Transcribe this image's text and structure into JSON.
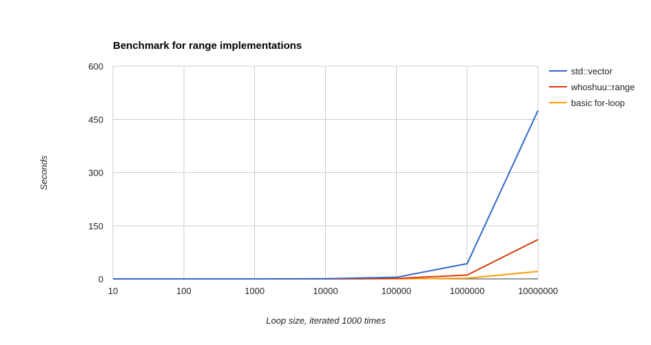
{
  "chart_data": {
    "type": "line",
    "title": "Benchmark for range implementations",
    "xlabel": "Loop size, iterated 1000 times",
    "ylabel": "Seconds",
    "categories": [
      "10",
      "100",
      "1000",
      "10000",
      "100000",
      "1000000",
      "10000000"
    ],
    "ylim": [
      0,
      600
    ],
    "yticks": [
      "0",
      "150",
      "300",
      "450",
      "600"
    ],
    "grid": true,
    "legend_position": "right",
    "series": [
      {
        "name": "std::vector",
        "color": "#3366cc",
        "values": [
          0,
          0,
          0,
          0.5,
          4.5,
          43,
          475
        ]
      },
      {
        "name": "whoshuu::range",
        "color": "#dc3912",
        "values": [
          0,
          0,
          0,
          0.1,
          1.2,
          11,
          111
        ]
      },
      {
        "name": "basic for-loop",
        "color": "#ff9900",
        "values": [
          0,
          0,
          0,
          0.02,
          0.2,
          2,
          21
        ]
      }
    ]
  }
}
